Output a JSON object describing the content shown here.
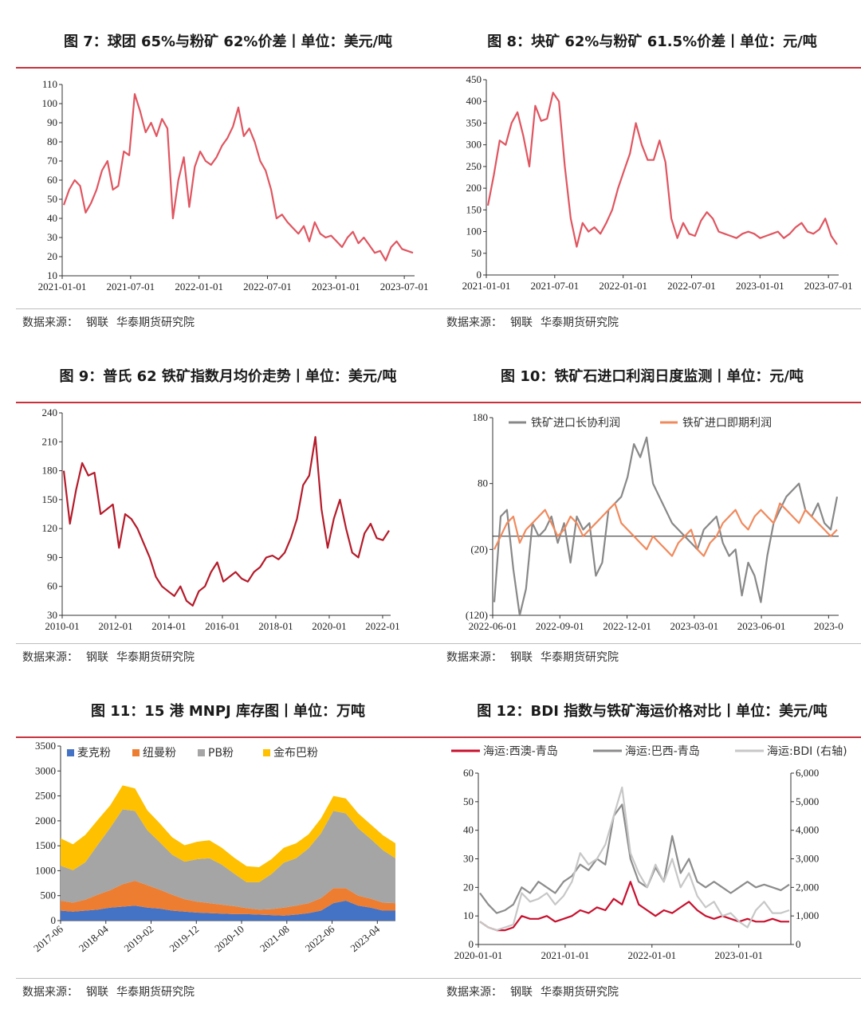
{
  "source": {
    "label": "数据来源：",
    "org": "钢联",
    "institute": "华泰期货研究院"
  },
  "charts": [
    {
      "id": "fig7",
      "title": "图 7：球团 65%与粉矿 62%价差丨单位：美元/吨",
      "chart_data": {
        "type": "line",
        "x_ticks": [
          "2021-01-01",
          "2021-07-01",
          "2022-01-01",
          "2022-07-01",
          "2023-01-01",
          "2023-07-01"
        ],
        "ylim": [
          10,
          110
        ],
        "y_ticks": [
          10,
          20,
          30,
          40,
          50,
          60,
          70,
          80,
          90,
          100,
          110
        ],
        "series": [
          {
            "name": "球团65%-粉矿62%价差",
            "color": "#e05560",
            "values": [
              47,
              55,
              60,
              57,
              43,
              48,
              55,
              65,
              70,
              55,
              57,
              75,
              73,
              105,
              96,
              85,
              90,
              83,
              92,
              87,
              40,
              60,
              72,
              46,
              67,
              75,
              70,
              68,
              72,
              78,
              82,
              88,
              98,
              83,
              87,
              80,
              70,
              65,
              55,
              40,
              42,
              38,
              35,
              32,
              36,
              28,
              38,
              32,
              30,
              31,
              28,
              25,
              30,
              33,
              27,
              30,
              26,
              22,
              23,
              18,
              25,
              28,
              24,
              23,
              22
            ]
          }
        ]
      }
    },
    {
      "id": "fig8",
      "title": "图 8：块矿 62%与粉矿 61.5%价差丨单位：元/吨",
      "chart_data": {
        "type": "line",
        "x_ticks": [
          "2021-01-01",
          "2021-07-01",
          "2022-01-01",
          "2022-07-01",
          "2023-01-01",
          "2023-07-01"
        ],
        "ylim": [
          0,
          450
        ],
        "y_ticks": [
          0,
          50,
          100,
          150,
          200,
          250,
          300,
          350,
          400,
          450
        ],
        "series": [
          {
            "name": "块矿62%-粉矿61.5%价差",
            "color": "#e05560",
            "values": [
              160,
              230,
              310,
              300,
              350,
              375,
              320,
              250,
              390,
              355,
              360,
              420,
              400,
              250,
              130,
              65,
              120,
              100,
              110,
              95,
              120,
              150,
              200,
              240,
              280,
              350,
              300,
              265,
              265,
              310,
              260,
              130,
              85,
              120,
              95,
              90,
              125,
              145,
              130,
              100,
              95,
              90,
              85,
              95,
              100,
              95,
              85,
              90,
              95,
              100,
              85,
              95,
              110,
              120,
              100,
              95,
              105,
              130,
              90,
              70
            ]
          }
        ]
      }
    },
    {
      "id": "fig9",
      "title": "图 9：普氏 62 铁矿指数月均价走势丨单位：美元/吨",
      "chart_data": {
        "type": "line",
        "x_ticks": [
          "2010-01",
          "2012-01",
          "2014-01",
          "2016-01",
          "2018-01",
          "2020-01",
          "2022-01"
        ],
        "ylim": [
          30,
          240
        ],
        "y_ticks": [
          30,
          60,
          90,
          120,
          150,
          180,
          210,
          240
        ],
        "series": [
          {
            "name": "普氏62铁矿指数",
            "color": "#b51b2a",
            "values": [
              180,
              125,
              160,
              188,
              175,
              178,
              135,
              140,
              145,
              100,
              135,
              130,
              120,
              105,
              90,
              70,
              60,
              55,
              50,
              60,
              45,
              40,
              55,
              60,
              75,
              85,
              65,
              70,
              75,
              68,
              65,
              75,
              80,
              90,
              92,
              88,
              95,
              110,
              130,
              165,
              175,
              215,
              140,
              100,
              130,
              150,
              120,
              95,
              90,
              115,
              125,
              110,
              108,
              118
            ]
          }
        ]
      }
    },
    {
      "id": "fig10",
      "title": "图 10：铁矿石进口利润日度监测丨单位：元/吨",
      "chart_data": {
        "type": "line",
        "x_ticks": [
          "2022-06-01",
          "2022-09-01",
          "2022-12-01",
          "2023-03-01",
          "2023-06-01",
          "2023-0"
        ],
        "ylim": [
          -120,
          180
        ],
        "y_ticks": [
          "180",
          "80",
          "(20)",
          "(120)"
        ],
        "legend": [
          "铁矿进口长协利润",
          "铁矿进口即期利润"
        ],
        "series": [
          {
            "name": "铁矿进口长协利润",
            "color": "#888888",
            "values": [
              -100,
              30,
              40,
              -50,
              -120,
              -80,
              20,
              0,
              10,
              30,
              -10,
              20,
              -40,
              30,
              10,
              20,
              -60,
              -40,
              40,
              50,
              60,
              90,
              140,
              120,
              150,
              80,
              60,
              40,
              20,
              10,
              0,
              -10,
              -20,
              10,
              20,
              30,
              -10,
              -30,
              -20,
              -90,
              -40,
              -60,
              -100,
              -30,
              20,
              40,
              60,
              70,
              80,
              40,
              30,
              50,
              20,
              10,
              60
            ]
          },
          {
            "name": "铁矿进口即期利润",
            "color": "#f08a5d",
            "values": [
              -20,
              0,
              20,
              30,
              -10,
              10,
              20,
              30,
              40,
              20,
              0,
              10,
              30,
              20,
              0,
              10,
              20,
              30,
              40,
              50,
              20,
              10,
              0,
              -10,
              -20,
              0,
              -10,
              -20,
              -30,
              -10,
              0,
              10,
              -20,
              -30,
              -10,
              0,
              20,
              30,
              40,
              20,
              10,
              30,
              40,
              30,
              20,
              50,
              40,
              30,
              20,
              40,
              30,
              20,
              10,
              0,
              10
            ]
          }
        ]
      }
    },
    {
      "id": "fig11",
      "title": "图 11：15 港 MNPJ 库存图丨单位：万吨",
      "chart_data": {
        "type": "area",
        "x_ticks": [
          "2017-06",
          "2018-04",
          "2019-02",
          "2019-12",
          "2020-10",
          "2021-08",
          "2022-06",
          "2023-04"
        ],
        "ylim": [
          0,
          3500
        ],
        "y_ticks": [
          0,
          500,
          1000,
          1500,
          2000,
          2500,
          3000,
          3500
        ],
        "legend": [
          "麦克粉",
          "纽曼粉",
          "PB粉",
          "金布巴粉"
        ],
        "series": [
          {
            "name": "麦克粉",
            "color": "#4472c4",
            "values": [
              200,
              180,
              200,
              220,
              260,
              280,
              300,
              260,
              240,
              200,
              180,
              160,
              150,
              140,
              130,
              130,
              120,
              110,
              100,
              120,
              150,
              200,
              350,
              400,
              300,
              260,
              200,
              200
            ]
          },
          {
            "name": "纽曼粉",
            "color": "#ed7d31",
            "values": [
              200,
              180,
              220,
              300,
              350,
              450,
              500,
              450,
              380,
              320,
              250,
              220,
              200,
              180,
              160,
              120,
              100,
              120,
              160,
              180,
              200,
              250,
              300,
              250,
              200,
              180,
              160,
              150
            ]
          },
          {
            "name": "PB粉",
            "color": "#a5a5a5",
            "values": [
              700,
              650,
              750,
              1000,
              1250,
              1500,
              1400,
              1100,
              950,
              800,
              750,
              850,
              900,
              800,
              650,
              520,
              550,
              700,
              900,
              950,
              1100,
              1300,
              1550,
              1500,
              1350,
              1200,
              1050,
              900
            ]
          },
          {
            "name": "金布巴粉",
            "color": "#ffc000",
            "values": [
              550,
              520,
              550,
              500,
              450,
              480,
              450,
              400,
              380,
              350,
              330,
              350,
              360,
              340,
              320,
              320,
              300,
              300,
              300,
              300,
              280,
              300,
              300,
              300,
              300,
              290,
              300,
              300
            ]
          }
        ]
      }
    },
    {
      "id": "fig12",
      "title": "图 12：BDI 指数与铁矿海运价格对比丨单位：美元/吨",
      "chart_data": {
        "type": "line",
        "x_ticks": [
          "2020-01-01",
          "2021-01-01",
          "2022-01-01",
          "2023-01-01"
        ],
        "ylim": [
          0,
          60
        ],
        "y_ticks": [
          0,
          10,
          20,
          30,
          40,
          50,
          60
        ],
        "y2lim": [
          0,
          6000
        ],
        "y2_ticks": [
          "0",
          "1,000",
          "2,000",
          "3,000",
          "4,000",
          "5,000",
          "6,000"
        ],
        "legend": [
          "海运:西澳-青岛",
          "海运:巴西-青岛",
          "海运:BDI (右轴)"
        ],
        "series": [
          {
            "name": "海运:西澳-青岛",
            "color": "#c8102e",
            "axis": "left",
            "values": [
              8,
              6,
              5,
              5,
              6,
              10,
              9,
              9,
              10,
              8,
              9,
              10,
              12,
              11,
              13,
              12,
              16,
              14,
              22,
              14,
              12,
              10,
              12,
              11,
              13,
              15,
              12,
              10,
              9,
              10,
              9,
              8,
              9,
              8,
              8,
              9,
              8,
              8
            ]
          },
          {
            "name": "海运:巴西-青岛",
            "color": "#8c8c8c",
            "axis": "left",
            "values": [
              18,
              14,
              11,
              12,
              14,
              20,
              18,
              22,
              20,
              18,
              22,
              24,
              28,
              26,
              30,
              28,
              45,
              49,
              30,
              22,
              20,
              27,
              22,
              38,
              25,
              30,
              22,
              20,
              22,
              20,
              18,
              20,
              22,
              20,
              21,
              20,
              19,
              21
            ]
          },
          {
            "name": "海运:BDI (右轴)",
            "color": "#c7c7c7",
            "axis": "right",
            "values": [
              800,
              600,
              500,
              600,
              700,
              1800,
              1500,
              1600,
              1800,
              1400,
              1700,
              2200,
              3200,
              2800,
              3000,
              3500,
              4500,
              5500,
              3200,
              2500,
              2000,
              2800,
              2200,
              3000,
              2000,
              2500,
              1700,
              1300,
              1500,
              1000,
              1100,
              800,
              600,
              1200,
              1500,
              1100,
              1100,
              1200
            ]
          }
        ]
      }
    }
  ]
}
